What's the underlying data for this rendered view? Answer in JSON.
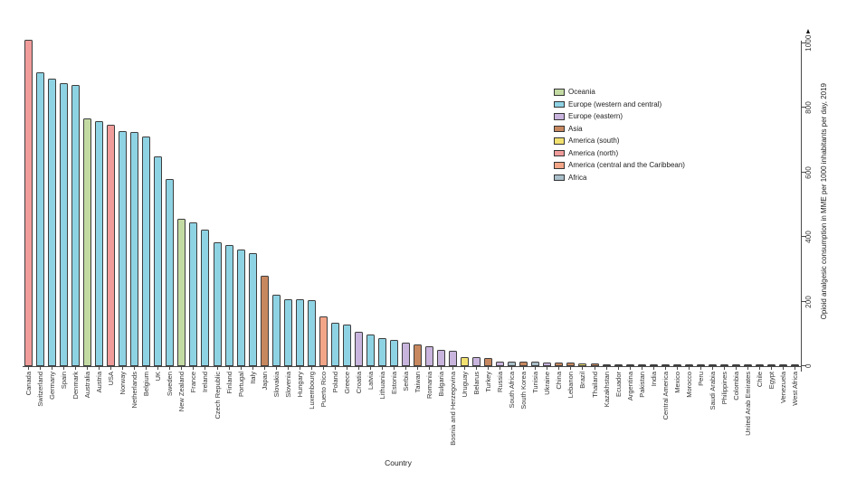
{
  "chart_data": {
    "type": "bar",
    "title": "",
    "xlabel": "Country",
    "ylabel": "Opioid analgesic consumption in MME per 1000 inhabitants per day, 2019",
    "ylim": [
      0,
      1000
    ],
    "yticks": [
      0,
      200,
      400,
      600,
      800,
      1000
    ],
    "ymax_overflow_arrow": true,
    "grid": false,
    "legend_position": "upper-right-of-plot",
    "axis_side": "right",
    "legend": [
      {
        "key": "oceania",
        "label": "Oceania",
        "color": "#c3dba3"
      },
      {
        "key": "europe_wc",
        "label": "Europe (western and central)",
        "color": "#8ed3e4"
      },
      {
        "key": "europe_e",
        "label": "Europe (eastern)",
        "color": "#c9b4de"
      },
      {
        "key": "asia",
        "label": "Asia",
        "color": "#c8885f"
      },
      {
        "key": "america_s",
        "label": "America (south)",
        "color": "#f2e170"
      },
      {
        "key": "america_n",
        "label": "America (north)",
        "color": "#f09c9b"
      },
      {
        "key": "america_c",
        "label": "America (central and the Caribbean)",
        "color": "#f3a588"
      },
      {
        "key": "africa",
        "label": "Africa",
        "color": "#a9bfc9"
      }
    ],
    "bars": [
      {
        "country": "Canada",
        "region": "america_n",
        "value": 1010
      },
      {
        "country": "Switzerland",
        "region": "europe_wc",
        "value": 910
      },
      {
        "country": "Germany",
        "region": "europe_wc",
        "value": 890
      },
      {
        "country": "Spain",
        "region": "europe_wc",
        "value": 876
      },
      {
        "country": "Denmark",
        "region": "europe_wc",
        "value": 872
      },
      {
        "country": "Australia",
        "region": "oceania",
        "value": 768
      },
      {
        "country": "Austria",
        "region": "europe_wc",
        "value": 758
      },
      {
        "country": "USA",
        "region": "america_n",
        "value": 748
      },
      {
        "country": "Norway",
        "region": "europe_wc",
        "value": 729
      },
      {
        "country": "Netherlands",
        "region": "europe_wc",
        "value": 726
      },
      {
        "country": "Belgium",
        "region": "europe_wc",
        "value": 711
      },
      {
        "country": "UK",
        "region": "europe_wc",
        "value": 651
      },
      {
        "country": "Sweden",
        "region": "europe_wc",
        "value": 580
      },
      {
        "country": "New Zealand",
        "region": "oceania",
        "value": 458
      },
      {
        "country": "France",
        "region": "europe_wc",
        "value": 446
      },
      {
        "country": "Ireland",
        "region": "europe_wc",
        "value": 424
      },
      {
        "country": "Czech Republic",
        "region": "europe_wc",
        "value": 384
      },
      {
        "country": "Finland",
        "region": "europe_wc",
        "value": 376
      },
      {
        "country": "Portugal",
        "region": "europe_wc",
        "value": 362
      },
      {
        "country": "Italy",
        "region": "europe_wc",
        "value": 350
      },
      {
        "country": "Japan",
        "region": "asia",
        "value": 280
      },
      {
        "country": "Slovakia",
        "region": "europe_wc",
        "value": 221
      },
      {
        "country": "Slovenia",
        "region": "europe_wc",
        "value": 208
      },
      {
        "country": "Hungary",
        "region": "europe_wc",
        "value": 206
      },
      {
        "country": "Luxembourg",
        "region": "europe_wc",
        "value": 204
      },
      {
        "country": "Puerto Rico",
        "region": "america_c",
        "value": 155
      },
      {
        "country": "Poland",
        "region": "europe_wc",
        "value": 134
      },
      {
        "country": "Greece",
        "region": "europe_wc",
        "value": 130
      },
      {
        "country": "Croatia",
        "region": "europe_e",
        "value": 106
      },
      {
        "country": "Latvia",
        "region": "europe_wc",
        "value": 97
      },
      {
        "country": "Lithuania",
        "region": "europe_wc",
        "value": 86
      },
      {
        "country": "Estonia",
        "region": "europe_wc",
        "value": 81
      },
      {
        "country": "Serbia",
        "region": "europe_e",
        "value": 72
      },
      {
        "country": "Taiwan",
        "region": "asia",
        "value": 67
      },
      {
        "country": "Romania",
        "region": "europe_e",
        "value": 63
      },
      {
        "country": "Bulgaria",
        "region": "europe_e",
        "value": 51
      },
      {
        "country": "Bosnia and Herzegovina",
        "region": "europe_e",
        "value": 48
      },
      {
        "country": "Uruguay",
        "region": "america_s",
        "value": 28
      },
      {
        "country": "Belarus",
        "region": "europe_e",
        "value": 27
      },
      {
        "country": "Turkey",
        "region": "asia",
        "value": 24
      },
      {
        "country": "Russia",
        "region": "europe_e",
        "value": 15
      },
      {
        "country": "South Africa",
        "region": "africa",
        "value": 14
      },
      {
        "country": "South Korea",
        "region": "asia",
        "value": 14
      },
      {
        "country": "Tunisia",
        "region": "africa",
        "value": 13
      },
      {
        "country": "Ukraine",
        "region": "europe_e",
        "value": 12
      },
      {
        "country": "China",
        "region": "asia",
        "value": 10
      },
      {
        "country": "Lebanon",
        "region": "asia",
        "value": 10
      },
      {
        "country": "Brazil",
        "region": "america_s",
        "value": 9
      },
      {
        "country": "Thailand",
        "region": "asia",
        "value": 8
      },
      {
        "country": "Kazakhstan",
        "region": "asia",
        "value": 7
      },
      {
        "country": "Ecuador",
        "region": "america_s",
        "value": 6
      },
      {
        "country": "Argentina",
        "region": "america_s",
        "value": 5
      },
      {
        "country": "Pakistan",
        "region": "asia",
        "value": 4
      },
      {
        "country": "India",
        "region": "asia",
        "value": 4
      },
      {
        "country": "Central America",
        "region": "america_c",
        "value": 4
      },
      {
        "country": "Mexico",
        "region": "america_n",
        "value": 3
      },
      {
        "country": "Morocco",
        "region": "africa",
        "value": 3
      },
      {
        "country": "Peru",
        "region": "america_s",
        "value": 3
      },
      {
        "country": "Saudi Arabia",
        "region": "asia",
        "value": 2
      },
      {
        "country": "Philippines",
        "region": "asia",
        "value": 2
      },
      {
        "country": "Colombia",
        "region": "america_s",
        "value": 2
      },
      {
        "country": "United Arab Emirates",
        "region": "asia",
        "value": 2
      },
      {
        "country": "Chile",
        "region": "america_s",
        "value": 2
      },
      {
        "country": "Egypt",
        "region": "africa",
        "value": 1
      },
      {
        "country": "Venezuela",
        "region": "america_s",
        "value": 1
      },
      {
        "country": "West Africa",
        "region": "africa",
        "value": 1
      }
    ]
  }
}
